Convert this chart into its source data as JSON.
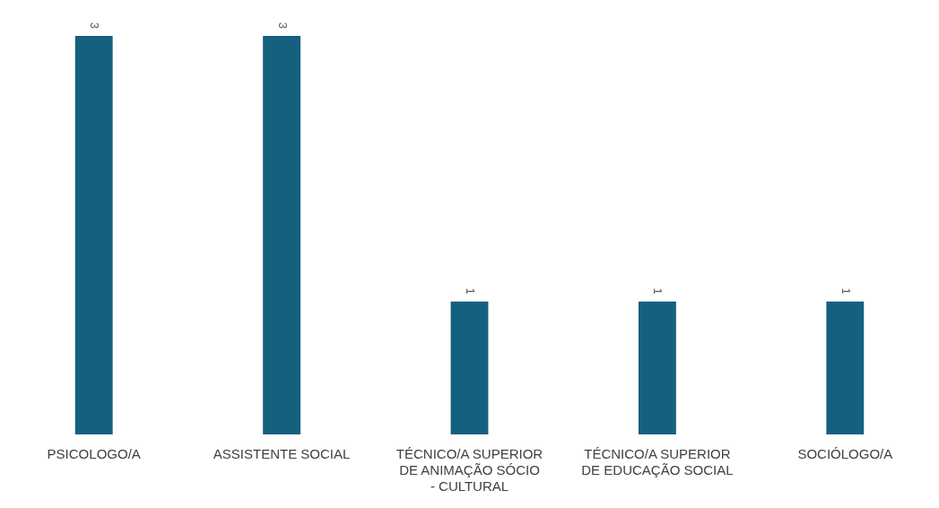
{
  "chart_data": {
    "type": "bar",
    "categories": [
      "PSICOLOGO/A",
      "ASSISTENTE SOCIAL",
      "TÉCNICO/A SUPERIOR DE ANIMAÇÃO SÓCIO - CULTURAL",
      "TÉCNICO/A SUPERIOR DE EDUCAÇÃO SOCIAL",
      "SOCIÓLOGO/A"
    ],
    "values": [
      3,
      3,
      1,
      1,
      1
    ],
    "color": "#16607f",
    "data_labels": true,
    "grid": false,
    "legend": false
  }
}
